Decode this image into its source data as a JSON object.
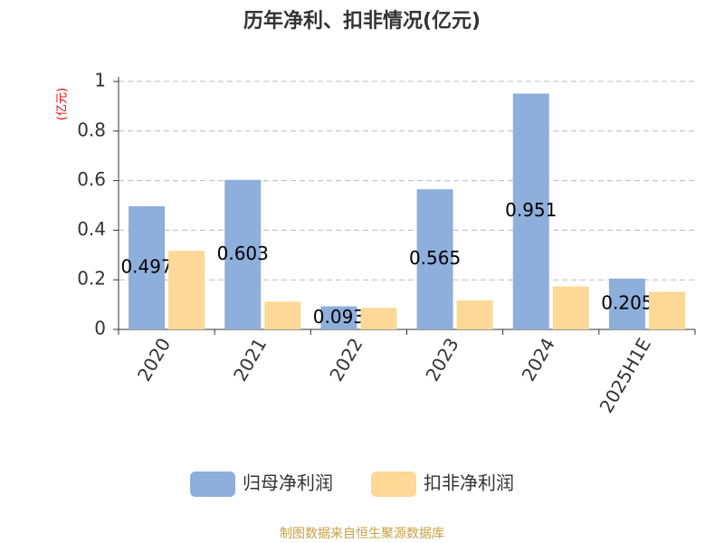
{
  "chart_data": {
    "type": "bar",
    "title": "历年净利、扣非情况(亿元)",
    "y_label": "(亿元)",
    "categories": [
      "2020",
      "2021",
      "2022",
      "2023",
      "2024",
      "2025H1E"
    ],
    "series": [
      {
        "name": "归母净利润",
        "color": "#8eaedb",
        "values": [
          0.497,
          0.603,
          0.093,
          0.565,
          0.951,
          0.205
        ]
      },
      {
        "name": "扣非净利润",
        "color": "#fdd896",
        "values": [
          0.317,
          0.112,
          0.087,
          0.117,
          0.173,
          0.152
        ]
      }
    ],
    "ylim": [
      0,
      1
    ],
    "yticks": [
      0,
      0.2,
      0.4,
      0.6,
      0.8,
      1
    ],
    "grid": true,
    "legend": "bottom",
    "source": "制图数据来自恒生聚源数据库"
  }
}
